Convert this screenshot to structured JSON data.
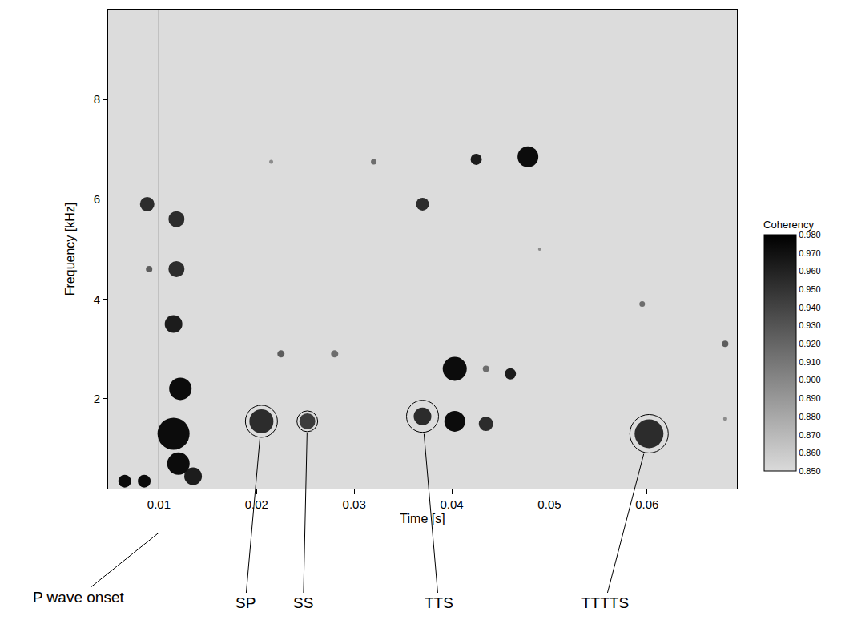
{
  "chart_data": {
    "type": "scatter",
    "x_label": "Time [s]",
    "y_label": "Frequency [kHz]",
    "xlim": [
      0.0048,
      0.0692
    ],
    "xticks": [
      0.01,
      0.02,
      0.03,
      0.04,
      0.05,
      0.06
    ],
    "ylim": [
      0.2,
      9.8
    ],
    "yticks": [
      2,
      4,
      6,
      8
    ],
    "grid": false,
    "x": [
      0.0065,
      0.0085,
      0.0115,
      0.0122,
      0.012,
      0.0135,
      0.0115,
      0.0118,
      0.0118,
      0.0088,
      0.009,
      0.0205,
      0.0252,
      0.0225,
      0.028,
      0.032,
      0.0215,
      0.037,
      0.0403,
      0.0435,
      0.0403,
      0.0435,
      0.046,
      0.037,
      0.0425,
      0.0478,
      0.049,
      0.0602,
      0.0595,
      0.068,
      0.068
    ],
    "y": [
      0.35,
      0.35,
      1.3,
      2.2,
      0.7,
      0.45,
      3.5,
      4.6,
      5.6,
      5.9,
      4.6,
      1.55,
      1.55,
      2.9,
      2.9,
      6.75,
      6.75,
      1.65,
      1.55,
      1.5,
      2.6,
      2.6,
      2.5,
      5.9,
      6.8,
      6.85,
      5.0,
      1.3,
      3.9,
      3.1,
      1.6
    ],
    "coherency": [
      0.98,
      0.98,
      0.98,
      0.98,
      0.98,
      0.97,
      0.97,
      0.96,
      0.96,
      0.96,
      0.93,
      0.96,
      0.95,
      0.93,
      0.92,
      0.92,
      0.9,
      0.96,
      0.98,
      0.96,
      0.98,
      0.92,
      0.97,
      0.96,
      0.97,
      0.98,
      0.9,
      0.96,
      0.92,
      0.93,
      0.9
    ],
    "sizes": [
      16,
      16,
      40,
      28,
      28,
      22,
      22,
      20,
      20,
      18,
      8,
      30,
      20,
      9,
      9,
      7,
      5,
      22,
      26,
      18,
      30,
      8,
      14,
      16,
      14,
      26,
      4,
      36,
      7,
      8,
      5
    ],
    "colorbar": {
      "title": "Coherency",
      "range": [
        0.85,
        0.98
      ],
      "ticks": [
        {
          "value": 0.85,
          "label": "0.850"
        },
        {
          "value": 0.86,
          "label": "0.860"
        },
        {
          "value": 0.87,
          "label": "0.870"
        },
        {
          "value": 0.88,
          "label": "0.880"
        },
        {
          "value": 0.89,
          "label": "0.890"
        },
        {
          "value": 0.9,
          "label": "0.900"
        },
        {
          "value": 0.91,
          "label": "0.910"
        },
        {
          "value": 0.92,
          "label": "0.920"
        },
        {
          "value": 0.93,
          "label": "0.930"
        },
        {
          "value": 0.94,
          "label": "0.940"
        },
        {
          "value": 0.95,
          "label": "0.950"
        },
        {
          "value": 0.96,
          "label": "0.960"
        },
        {
          "value": 0.97,
          "label": "0.970"
        },
        {
          "value": 0.98,
          "label": "0.980"
        }
      ]
    },
    "annotations": [
      {
        "text": "P wave onset",
        "x": 0.01
      },
      {
        "text": "SP",
        "x": 0.0205,
        "y": 1.55
      },
      {
        "text": "SS",
        "x": 0.0252,
        "y": 1.55
      },
      {
        "text": "TTS",
        "x": 0.037,
        "y": 1.65
      },
      {
        "text": "TTTTS",
        "x": 0.0602,
        "y": 1.3
      }
    ]
  }
}
